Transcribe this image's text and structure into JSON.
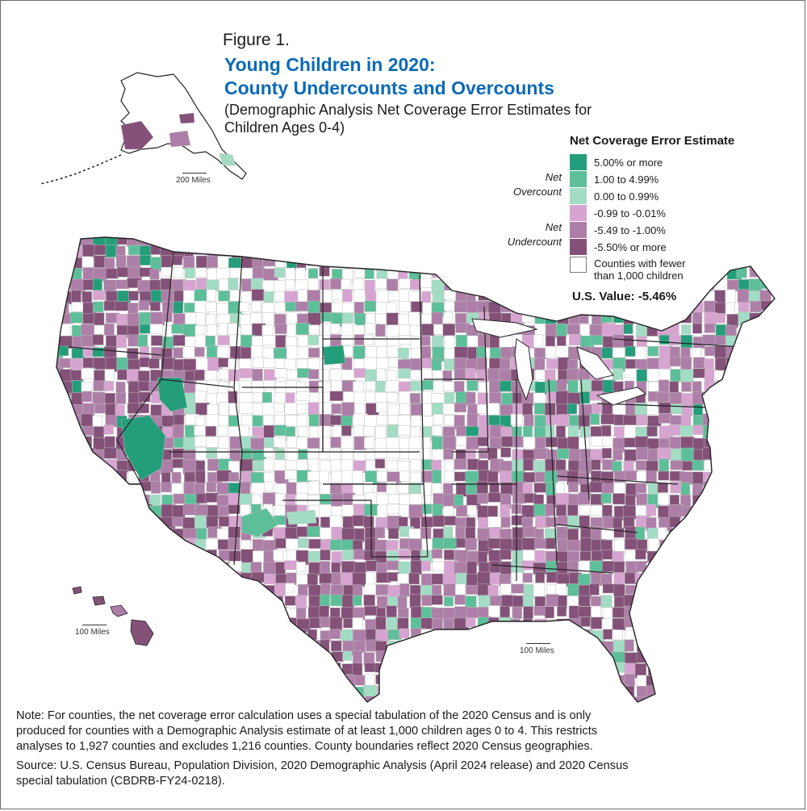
{
  "figure": {
    "label": "Figure 1.",
    "title_line1": "Young Children in 2020:",
    "title_line2": "County Undercounts and Overcounts",
    "subtitle_line1": "(Demographic Analysis Net Coverage Error Estimates for",
    "subtitle_line2": "Children Ages 0-4)"
  },
  "legend": {
    "title": "Net Coverage Error Estimate",
    "overcount_label_line1": "Net",
    "overcount_label_line2": "Overcount",
    "undercount_label_line1": "Net",
    "undercount_label_line2": "Undercount",
    "items": [
      {
        "label": "5.00% or more",
        "color": "#249e7a"
      },
      {
        "label": "1.00 to 4.99%",
        "color": "#5dbf99"
      },
      {
        "label": "0.00 to 0.99%",
        "color": "#a3dcc4"
      },
      {
        "label": "-0.99 to -0.01%",
        "color": "#d7a4d1"
      },
      {
        "label": "-5.49 to -1.00%",
        "color": "#ad7fa8"
      },
      {
        "label": "-5.50% or more",
        "color": "#845179"
      },
      {
        "label_line1": "Counties with fewer",
        "label_line2": "than 1,000 children",
        "color": "#ffffff"
      }
    ],
    "us_value": "U.S. Value: -5.46%"
  },
  "scale_bars": {
    "alaska": "200 Miles",
    "hawaii": "100 Miles",
    "mainland": "100 Miles"
  },
  "map_colors": {
    "state_border": "#222222",
    "county_border": "#bdbdbd"
  },
  "notes": {
    "note_line1": "Note: For counties, the net coverage error calculation uses a special tabulation of the 2020 Census and is only",
    "note_line2": "produced for counties with a Demographic Analysis estimate of at least 1,000 children ages 0 to 4. This restricts",
    "note_line3": "analyses to 1,927 counties and excludes 1,216 counties. County boundaries reflect 2020 Census geographies.",
    "source_line1": "Source: U.S. Census Bureau, Population Division, 2020 Demographic Analysis (April 2024 release) and 2020 Census",
    "source_line2": "special tabulation (CBDRB-FY24-0218)."
  }
}
